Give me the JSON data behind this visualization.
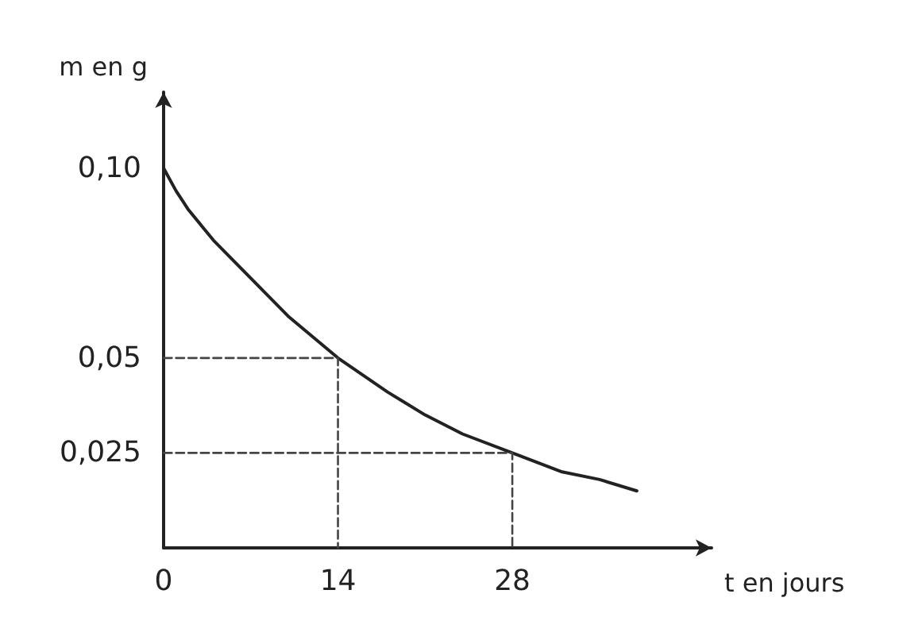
{
  "chart_data": {
    "type": "line",
    "xlabel": "t en jours",
    "ylabel": "m en g",
    "xlim": [
      0,
      44
    ],
    "ylim": [
      0,
      0.12
    ],
    "xticks": [
      {
        "value": 0,
        "label": "0"
      },
      14,
      28
    ],
    "yticks": [
      {
        "value": 0.025,
        "label": "0,025"
      },
      {
        "value": 0.05,
        "label": "0,05"
      },
      {
        "value": 0.1,
        "label": "0,10"
      }
    ],
    "grid": false,
    "marker": "none",
    "series": [
      {
        "color": "#222222",
        "line_style": "solid",
        "x": [
          0,
          1,
          2,
          4,
          7,
          10,
          14,
          18,
          21,
          24,
          28,
          32,
          35,
          38
        ],
        "values": [
          0.1,
          0.094,
          0.089,
          0.081,
          0.071,
          0.061,
          0.05,
          0.041,
          0.035,
          0.03,
          0.025,
          0.02,
          0.018,
          0.015
        ]
      },
      {
        "color": "#444444",
        "line_style": "dashed",
        "x": [
          0,
          14,
          14
        ],
        "values": [
          0.05,
          0.05,
          0
        ]
      },
      {
        "color": "#444444",
        "line_style": "dashed",
        "x": [
          0,
          28,
          28
        ],
        "values": [
          0.025,
          0.025,
          0
        ]
      }
    ]
  }
}
